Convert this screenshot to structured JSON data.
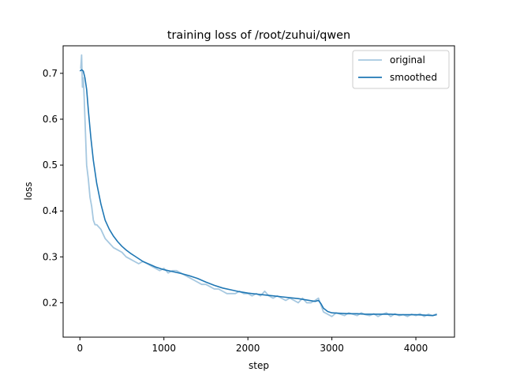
{
  "chart_data": {
    "type": "line",
    "title": "training loss of /root/zuhui/qwen",
    "xlabel": "step",
    "ylabel": "loss",
    "xlim": [
      -200,
      4460
    ],
    "ylim": [
      0.125,
      0.76
    ],
    "xticks": [
      0,
      1000,
      2000,
      3000,
      4000
    ],
    "yticks": [
      0.2,
      0.3,
      0.4,
      0.5,
      0.6,
      0.7
    ],
    "ytick_labels": [
      "0.2",
      "0.3",
      "0.4",
      "0.5",
      "0.6",
      "0.7"
    ],
    "grid": false,
    "legend_position": "top-right",
    "colors": {
      "original": "#a6c8e0",
      "smoothed": "#1f77b4"
    },
    "series": [
      {
        "name": "original",
        "x": [
          10,
          20,
          30,
          40,
          50,
          60,
          70,
          80,
          100,
          120,
          140,
          160,
          180,
          200,
          250,
          300,
          350,
          400,
          450,
          500,
          550,
          600,
          650,
          700,
          750,
          800,
          850,
          900,
          950,
          1000,
          1050,
          1100,
          1150,
          1200,
          1250,
          1300,
          1350,
          1400,
          1450,
          1500,
          1550,
          1600,
          1650,
          1700,
          1750,
          1800,
          1850,
          1900,
          1950,
          2000,
          2050,
          2100,
          2150,
          2200,
          2250,
          2300,
          2350,
          2400,
          2450,
          2500,
          2550,
          2600,
          2650,
          2700,
          2750,
          2800,
          2840,
          2860,
          2880,
          2900,
          2950,
          3000,
          3050,
          3100,
          3150,
          3200,
          3250,
          3300,
          3350,
          3400,
          3450,
          3500,
          3550,
          3600,
          3650,
          3700,
          3750,
          3800,
          3850,
          3900,
          3950,
          4000,
          4050,
          4100,
          4150,
          4200,
          4250
        ],
        "y": [
          0.71,
          0.74,
          0.67,
          0.69,
          0.65,
          0.6,
          0.55,
          0.5,
          0.47,
          0.43,
          0.41,
          0.38,
          0.37,
          0.37,
          0.36,
          0.34,
          0.33,
          0.32,
          0.315,
          0.31,
          0.3,
          0.295,
          0.29,
          0.285,
          0.29,
          0.285,
          0.28,
          0.275,
          0.27,
          0.275,
          0.265,
          0.27,
          0.27,
          0.265,
          0.26,
          0.255,
          0.25,
          0.245,
          0.24,
          0.24,
          0.235,
          0.23,
          0.23,
          0.225,
          0.22,
          0.22,
          0.22,
          0.225,
          0.22,
          0.22,
          0.215,
          0.22,
          0.215,
          0.225,
          0.215,
          0.21,
          0.215,
          0.21,
          0.205,
          0.21,
          0.205,
          0.2,
          0.21,
          0.2,
          0.2,
          0.205,
          0.21,
          0.2,
          0.19,
          0.18,
          0.175,
          0.17,
          0.178,
          0.175,
          0.172,
          0.178,
          0.175,
          0.172,
          0.178,
          0.174,
          0.172,
          0.176,
          0.17,
          0.175,
          0.178,
          0.17,
          0.176,
          0.172,
          0.174,
          0.17,
          0.175,
          0.172,
          0.176,
          0.17,
          0.175,
          0.172,
          0.176
        ]
      },
      {
        "name": "smoothed",
        "x": [
          0,
          20,
          40,
          60,
          80,
          100,
          130,
          160,
          200,
          250,
          300,
          350,
          400,
          450,
          500,
          550,
          600,
          650,
          700,
          750,
          800,
          850,
          900,
          950,
          1000,
          1100,
          1200,
          1300,
          1400,
          1500,
          1600,
          1700,
          1800,
          1900,
          2000,
          2100,
          2200,
          2300,
          2400,
          2500,
          2600,
          2700,
          2800,
          2840,
          2870,
          2900,
          2950,
          3000,
          3100,
          3200,
          3300,
          3400,
          3500,
          3600,
          3700,
          3800,
          3900,
          4000,
          4100,
          4200,
          4250
        ],
        "y": [
          0.705,
          0.708,
          0.705,
          0.69,
          0.665,
          0.62,
          0.56,
          0.51,
          0.46,
          0.415,
          0.38,
          0.36,
          0.345,
          0.333,
          0.323,
          0.315,
          0.308,
          0.302,
          0.296,
          0.29,
          0.286,
          0.282,
          0.278,
          0.275,
          0.272,
          0.268,
          0.264,
          0.259,
          0.253,
          0.245,
          0.238,
          0.232,
          0.228,
          0.224,
          0.221,
          0.219,
          0.217,
          0.215,
          0.213,
          0.211,
          0.209,
          0.206,
          0.203,
          0.205,
          0.198,
          0.188,
          0.181,
          0.178,
          0.177,
          0.176,
          0.176,
          0.175,
          0.175,
          0.175,
          0.175,
          0.174,
          0.174,
          0.174,
          0.173,
          0.172,
          0.174
        ]
      }
    ]
  }
}
